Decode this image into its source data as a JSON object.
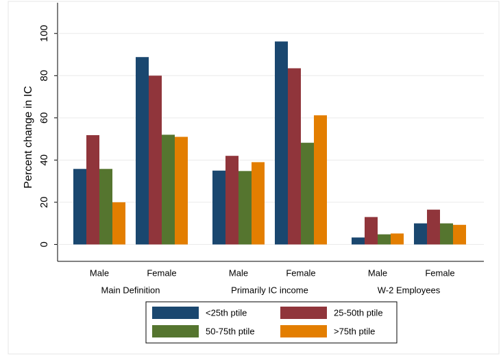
{
  "chart_data": {
    "type": "bar",
    "y_label": "Percent change in IC",
    "categories": [
      "Male",
      "Female",
      "Male",
      "Female",
      "Male",
      "Female"
    ],
    "groups": [
      "Main Definition",
      "Primarily IC income",
      "W-2 Employees"
    ],
    "series": [
      {
        "name": "<25th ptile",
        "color": "#1a476f",
        "values": [
          35.8,
          88.8,
          35,
          96.2,
          3.3,
          10
        ]
      },
      {
        "name": "25-50th ptile",
        "color": "#90353b",
        "values": [
          51.8,
          80,
          42,
          83.5,
          13,
          16.5
        ]
      },
      {
        "name": "50-75th ptile",
        "color": "#55752f",
        "values": [
          35.8,
          52,
          34.8,
          48.2,
          4.8,
          10
        ]
      },
      {
        "name": ">75th ptile",
        "color": "#e37e00",
        "values": [
          20,
          51,
          39,
          61.2,
          5.2,
          9.3
        ]
      }
    ],
    "ylim": [
      -8,
      110
    ],
    "yticks": [
      0,
      20,
      40,
      60,
      80,
      100
    ],
    "grid": true
  }
}
